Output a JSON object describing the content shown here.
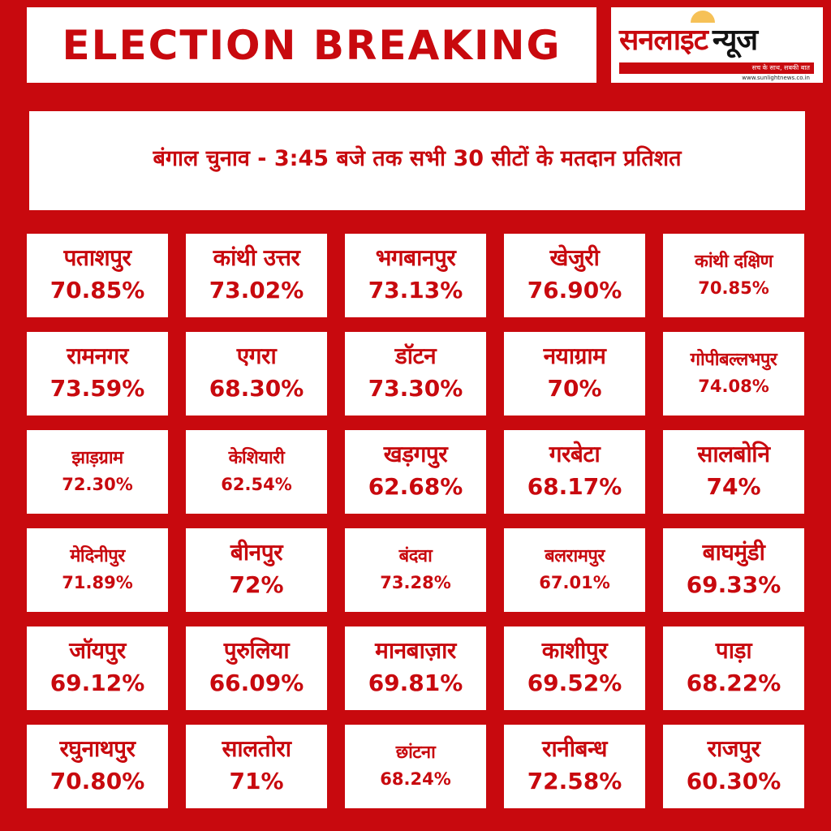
{
  "header": {
    "title": "ELECTION BREAKING",
    "logo_name_1": "सनलाइट",
    "logo_name_2": "न्यूज",
    "logo_tagline": "सच के साथ, सबकी बात",
    "logo_url": "www.sunlightnews.co.in"
  },
  "subtitle": "बंगाल चुनाव - 3:45 बजे तक सभी 30 सीटों के मतदान प्रतिशत",
  "colors": {
    "brand_red": "#c8090e",
    "white": "#ffffff"
  },
  "seats": [
    {
      "name": "पताशपुर",
      "pct": "70.85%"
    },
    {
      "name": "कांथी उत्तर",
      "pct": "73.02%"
    },
    {
      "name": "भगबानपुर",
      "pct": "73.13%"
    },
    {
      "name": "खेजुरी",
      "pct": "76.90%"
    },
    {
      "name": "कांथी दक्षिण",
      "pct": "70.85%"
    },
    {
      "name": "रामनगर",
      "pct": "73.59%"
    },
    {
      "name": "एगरा",
      "pct": "68.30%"
    },
    {
      "name": "डॉटन",
      "pct": "73.30%"
    },
    {
      "name": "नयाग्राम",
      "pct": "70%"
    },
    {
      "name": "गोपीबल्लभपुर",
      "pct": "74.08%"
    },
    {
      "name": "झाड़ग्राम",
      "pct": "72.30%"
    },
    {
      "name": "केशियारी",
      "pct": "62.54%"
    },
    {
      "name": "खड़गपुर",
      "pct": "62.68%"
    },
    {
      "name": "गरबेटा",
      "pct": "68.17%"
    },
    {
      "name": "सालबोनि",
      "pct": "74%"
    },
    {
      "name": "मेदिनीपुर",
      "pct": "71.89%"
    },
    {
      "name": "बीनपुर",
      "pct": "72%"
    },
    {
      "name": "बंदवा",
      "pct": "73.28%"
    },
    {
      "name": "बलरामपुर",
      "pct": "67.01%"
    },
    {
      "name": "बाघमुंडी",
      "pct": "69.33%"
    },
    {
      "name": "जॉयपुर",
      "pct": "69.12%"
    },
    {
      "name": "पुरुलिया",
      "pct": "66.09%"
    },
    {
      "name": "मानबाज़ार",
      "pct": "69.81%"
    },
    {
      "name": "काशीपुर",
      "pct": "69.52%"
    },
    {
      "name": "पाड़ा",
      "pct": "68.22%"
    },
    {
      "name": "रघुनाथपुर",
      "pct": "70.80%"
    },
    {
      "name": "सालतोरा",
      "pct": "71%"
    },
    {
      "name": "छांटना",
      "pct": "68.24%"
    },
    {
      "name": "रानीबन्ध",
      "pct": "72.58%"
    },
    {
      "name": "राजपुर",
      "pct": "60.30%"
    }
  ]
}
